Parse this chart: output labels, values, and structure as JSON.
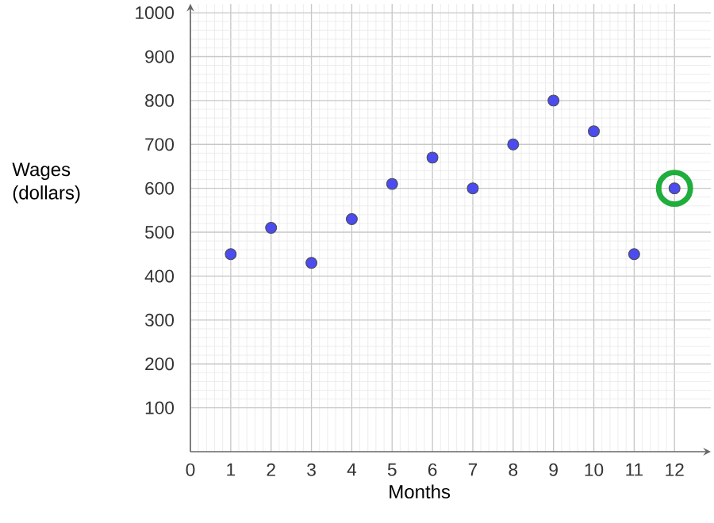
{
  "chart_data": {
    "type": "scatter",
    "xlabel": "Months",
    "ylabel": "Wages (dollars)",
    "x": [
      1,
      2,
      3,
      4,
      5,
      6,
      7,
      8,
      9,
      10,
      11,
      12
    ],
    "series": [
      {
        "color": "#4b4bf0",
        "values": [
          450,
          510,
          430,
          530,
          610,
          670,
          600,
          700,
          800,
          730,
          450,
          600
        ]
      },
      {
        "color": "#1fad3c",
        "x": [
          12
        ],
        "values": [
          600
        ]
      }
    ],
    "xlim": [
      0,
      12.9
    ],
    "ylim": [
      0,
      1020
    ],
    "xticks": [
      0,
      1,
      2,
      3,
      4,
      5,
      6,
      7,
      8,
      9,
      10,
      11,
      12
    ],
    "yticks": [
      100,
      200,
      300,
      400,
      500,
      600,
      700,
      800,
      900,
      1000
    ],
    "grid": true,
    "marker": "circle"
  }
}
